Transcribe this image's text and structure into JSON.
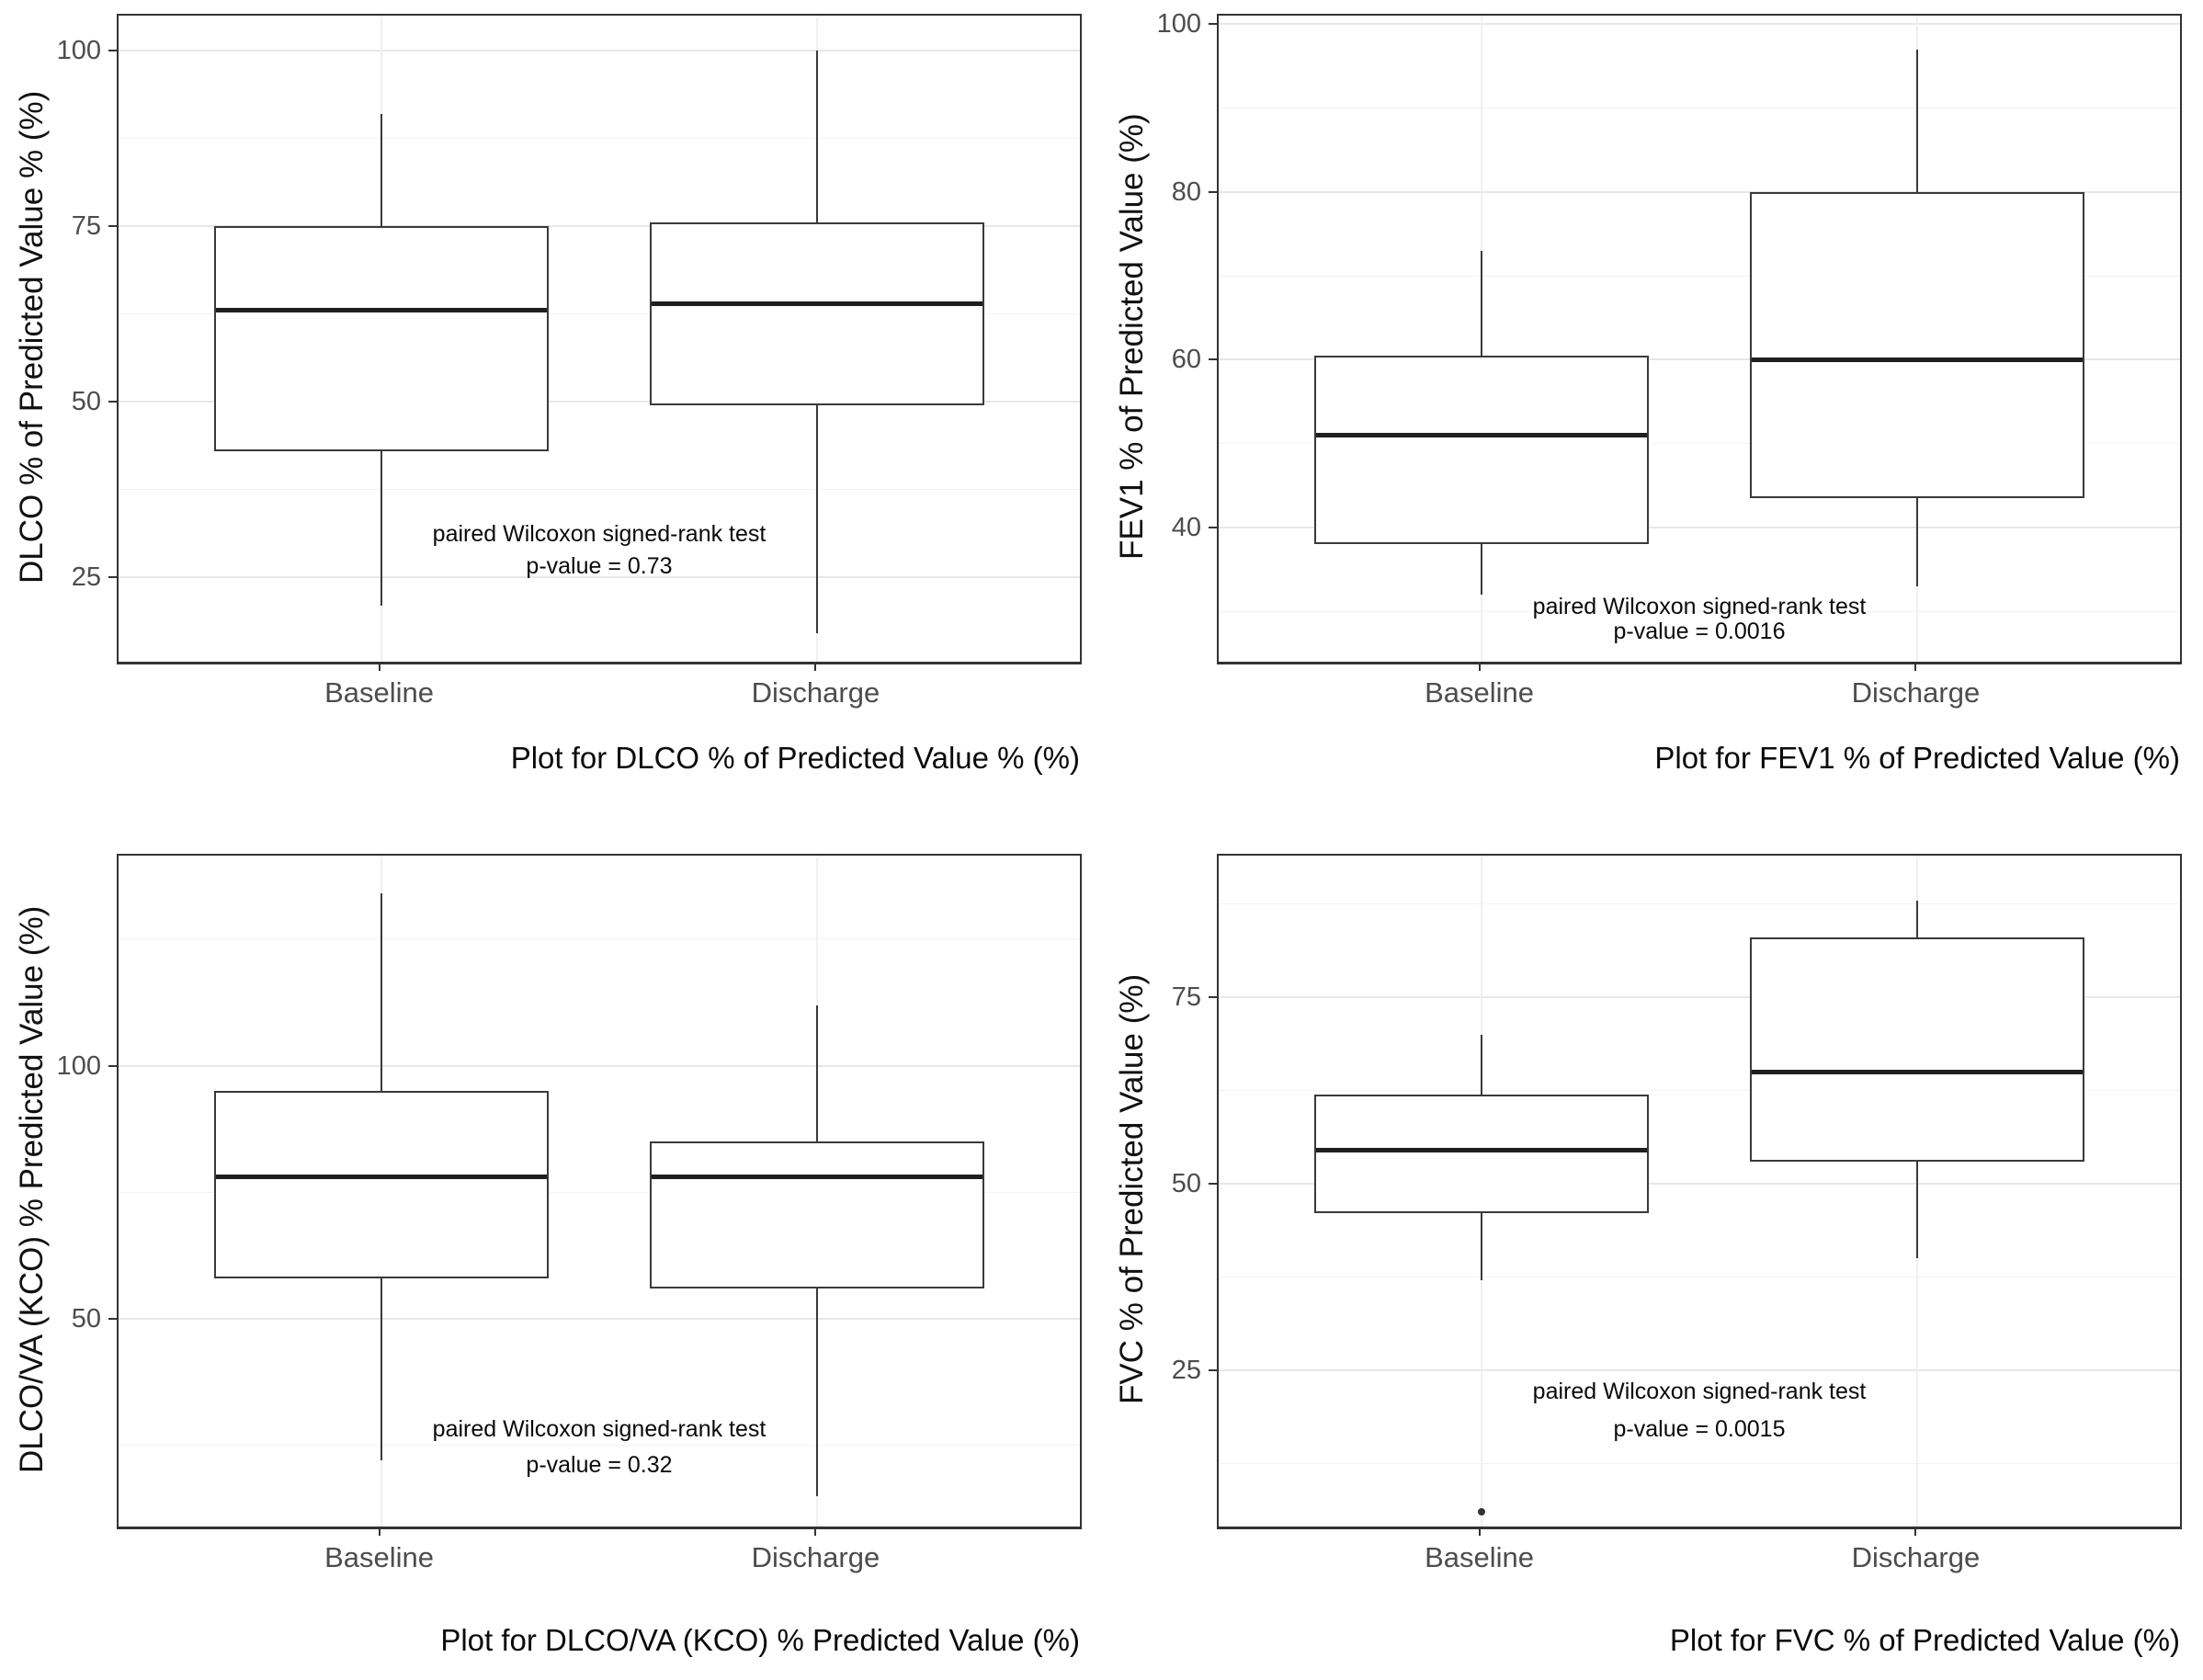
{
  "figure_title": "",
  "colors": {
    "background": "#ffffff",
    "panel_border": "#333333",
    "box_stroke": "#3a3a3a",
    "median_line": "#1f1f1f",
    "gridline_major": "#e7e7e7",
    "gridline_minor": "#f3f3f3",
    "tick_label": "#4d4d4d",
    "text": "#0a0a0a"
  },
  "chart_data": [
    {
      "type": "boxplot",
      "y_title": "DLCO % of Predicted Value % (%)",
      "caption": "Plot for DLCO % of Predicted Value % (%)",
      "categories": [
        "Baseline",
        "Discharge"
      ],
      "ylim": [
        13,
        105
      ],
      "yticks": [
        25,
        50,
        75,
        100
      ],
      "yminor": [
        37.5,
        62.5,
        87.5
      ],
      "grid": true,
      "legend": "none",
      "boxes": [
        {
          "category": "Baseline",
          "whisker_low": 21,
          "q1": 43,
          "median": 63,
          "q3": 75,
          "whisker_high": 91,
          "outliers": []
        },
        {
          "category": "Discharge",
          "whisker_low": 17,
          "q1": 49.5,
          "median": 64,
          "q3": 75.5,
          "whisker_high": 100,
          "outliers": []
        }
      ],
      "annotation": {
        "line1": "paired Wilcoxon signed-rank test",
        "line2": "p-value = 0.73",
        "y1": 31,
        "y2": 26.5
      }
    },
    {
      "type": "boxplot",
      "y_title": "FEV1 % of Predicted Value (%)",
      "caption": "Plot for FEV1 % of Predicted Value (%)",
      "categories": [
        "Baseline",
        "Discharge"
      ],
      "ylim": [
        24,
        101
      ],
      "yticks": [
        40,
        60,
        80,
        100
      ],
      "yminor": [
        30,
        50,
        70,
        90
      ],
      "grid": true,
      "legend": "none",
      "boxes": [
        {
          "category": "Baseline",
          "whisker_low": 32,
          "q1": 38,
          "median": 51,
          "q3": 60.5,
          "whisker_high": 73,
          "outliers": []
        },
        {
          "category": "Discharge",
          "whisker_low": 33,
          "q1": 43.5,
          "median": 60,
          "q3": 80,
          "whisker_high": 97,
          "outliers": []
        }
      ],
      "annotation": {
        "line1": "paired Wilcoxon signed-rank test",
        "line2": "p-value = 0.0016",
        "y1": 30.5,
        "y2": 27.5
      }
    },
    {
      "type": "boxplot",
      "y_title": "DLCO/VA (KCO) % Predicted Value (%)",
      "caption": "Plot for DLCO/VA (KCO) % Predicted Value (%)",
      "categories": [
        "Baseline",
        "Discharge"
      ],
      "ylim": [
        9,
        141.5
      ],
      "yticks": [
        50,
        100
      ],
      "yminor": [
        25,
        75,
        125
      ],
      "grid": true,
      "legend": "none",
      "boxes": [
        {
          "category": "Baseline",
          "whisker_low": 22,
          "q1": 58,
          "median": 78,
          "q3": 95,
          "whisker_high": 134,
          "outliers": []
        },
        {
          "category": "Discharge",
          "whisker_low": 15,
          "q1": 56,
          "median": 78,
          "q3": 85,
          "whisker_high": 112,
          "outliers": []
        }
      ],
      "annotation": {
        "line1": "paired Wilcoxon signed-rank test",
        "line2": "p-value = 0.32",
        "y1": 28,
        "y2": 21
      }
    },
    {
      "type": "boxplot",
      "y_title": "FVC % of Predicted Value (%)",
      "caption": "Plot for FVC % of Predicted Value (%)",
      "categories": [
        "Baseline",
        "Discharge"
      ],
      "ylim": [
        4,
        94
      ],
      "yticks": [
        25,
        50,
        75
      ],
      "yminor": [
        12.5,
        37.5,
        62.5,
        87.5
      ],
      "grid": true,
      "legend": "none",
      "boxes": [
        {
          "category": "Baseline",
          "whisker_low": 37,
          "q1": 46,
          "median": 54.5,
          "q3": 62,
          "whisker_high": 70,
          "outliers": [
            6
          ]
        },
        {
          "category": "Discharge",
          "whisker_low": 40,
          "q1": 53,
          "median": 65,
          "q3": 83,
          "whisker_high": 88,
          "outliers": []
        }
      ],
      "annotation": {
        "line1": "paired Wilcoxon signed-rank test",
        "line2": "p-value = 0.0015",
        "y1": 22,
        "y2": 17
      }
    }
  ]
}
